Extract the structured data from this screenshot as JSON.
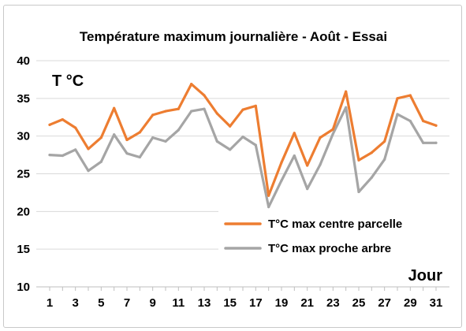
{
  "chart_data": {
    "type": "line",
    "title": "Température maximum journalière - Août - Essai",
    "ylabel": "T °C",
    "xlabel": "Jour",
    "ylim": [
      10,
      40
    ],
    "yticks": [
      "10",
      "15",
      "20",
      "25",
      "30",
      "35",
      "40"
    ],
    "xticks": [
      "1",
      "3",
      "5",
      "7",
      "9",
      "11",
      "13",
      "15",
      "17",
      "19",
      "21",
      "23",
      "25",
      "27",
      "29",
      "31"
    ],
    "x": [
      1,
      2,
      3,
      4,
      5,
      6,
      7,
      8,
      9,
      10,
      11,
      12,
      13,
      14,
      15,
      16,
      17,
      18,
      19,
      20,
      21,
      22,
      23,
      24,
      25,
      26,
      27,
      28,
      29,
      30,
      31
    ],
    "grid": true,
    "legend_position": "bottom-right",
    "series": [
      {
        "name": "T°C max centre parcelle",
        "color": "#ED7D31",
        "values": [
          31.5,
          32.2,
          31.1,
          28.3,
          29.8,
          33.7,
          29.5,
          30.5,
          32.8,
          33.3,
          33.6,
          36.9,
          35.4,
          33.0,
          31.3,
          33.5,
          34.0,
          22.1,
          26.5,
          30.4,
          26.1,
          29.8,
          30.9,
          35.9,
          26.8,
          27.8,
          29.3,
          35.0,
          35.4,
          32.0,
          31.4
        ]
      },
      {
        "name": "T°C max proche arbre",
        "color": "#A5A5A5",
        "values": [
          27.5,
          27.4,
          28.2,
          25.4,
          26.6,
          30.2,
          27.7,
          27.2,
          29.8,
          29.3,
          30.8,
          33.3,
          33.6,
          29.3,
          28.2,
          29.9,
          28.8,
          20.6,
          24.1,
          27.4,
          23.0,
          26.2,
          30.3,
          33.8,
          22.6,
          24.5,
          26.9,
          32.9,
          32.0,
          29.1,
          29.1
        ]
      }
    ]
  }
}
